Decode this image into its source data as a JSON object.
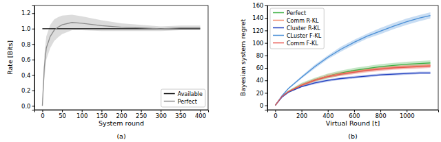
{
  "chart_data": [
    {
      "type": "line",
      "caption": "(a)",
      "x_label": "System round",
      "y_label": "Rate [Bits]",
      "x": [
        0,
        5,
        10,
        20,
        30,
        40,
        50,
        75,
        100,
        150,
        200,
        250,
        300,
        350,
        400
      ],
      "xlim": [
        -20,
        420
      ],
      "xticks": [
        0,
        50,
        100,
        150,
        200,
        250,
        300,
        350,
        400
      ],
      "ylim": [
        -0.05,
        1.3
      ],
      "yticks": [
        {
          "value": 0,
          "label": "0.0"
        },
        {
          "value": 0.2,
          "label": "0.2"
        },
        {
          "value": 0.4,
          "label": "0.4"
        },
        {
          "value": 0.6,
          "label": "0.6"
        },
        {
          "value": 0.8,
          "label": "0.8"
        },
        {
          "value": 1.0,
          "label": "1.0"
        },
        {
          "value": 1.2,
          "label": "1.2"
        }
      ],
      "legend": "lower right",
      "series": [
        {
          "name": "Available",
          "color": "#000000",
          "values": [
            1,
            1,
            1,
            1,
            1,
            1,
            1,
            1,
            1,
            1,
            1,
            1,
            1,
            1,
            1
          ]
        },
        {
          "name": "Perfect",
          "color": "#8c8c8c",
          "values": [
            0,
            0.5,
            0.75,
            0.9,
            0.98,
            1.02,
            1.05,
            1.08,
            1.07,
            1.04,
            1.02,
            1.01,
            1.0,
            1.01,
            1.01
          ],
          "error": [
            0,
            0.15,
            0.15,
            0.15,
            0.14,
            0.13,
            0.12,
            0.1,
            0.09,
            0.07,
            0.05,
            0.04,
            0.03,
            0.03,
            0.03
          ]
        }
      ]
    },
    {
      "type": "line",
      "caption": "(b)",
      "x_label": "Virtual Round [t]",
      "y_label": "Bayesian system regret",
      "x": [
        0,
        50,
        100,
        200,
        300,
        400,
        500,
        600,
        700,
        800,
        900,
        1000,
        1100,
        1180
      ],
      "xlim": [
        -60,
        1240
      ],
      "xticks": [
        0,
        200,
        400,
        600,
        800,
        1000
      ],
      "ylim": [
        -7,
        160
      ],
      "yticks": [
        0,
        20,
        40,
        60,
        80,
        100,
        120,
        140,
        160
      ],
      "legend": "upper left",
      "series": [
        {
          "name": "Perfect",
          "color": "#3cb043",
          "values": [
            0,
            14,
            22,
            33,
            41,
            47,
            52,
            56,
            59,
            62,
            64,
            66,
            67,
            68
          ],
          "error": [
            0,
            1,
            2,
            3,
            3,
            4,
            4,
            4,
            4,
            4,
            4,
            4,
            4,
            4
          ]
        },
        {
          "name": "Comm R-KL",
          "color": "#f08a6c",
          "values": [
            0,
            14,
            22,
            33,
            41,
            47,
            51,
            54,
            57,
            59,
            61,
            62,
            63,
            64
          ],
          "error": [
            0,
            1,
            1,
            2,
            2,
            3,
            3,
            3,
            3,
            3,
            3,
            3,
            3,
            3
          ]
        },
        {
          "name": "Cluster R-KL",
          "color": "#1f3fbf",
          "values": [
            0,
            13,
            21,
            30,
            36,
            40,
            43,
            45,
            47,
            49,
            50,
            51,
            52,
            52
          ],
          "error": [
            0,
            1,
            1,
            1,
            2,
            2,
            2,
            2,
            2,
            2,
            2,
            2,
            2,
            2
          ]
        },
        {
          "name": "CLuster F-KL",
          "color": "#4a8fd6",
          "values": [
            0,
            15,
            27,
            45,
            62,
            77,
            90,
            101,
            111,
            119,
            127,
            134,
            140,
            144
          ],
          "error": [
            0,
            1,
            1,
            2,
            3,
            3,
            4,
            4,
            4,
            5,
            5,
            5,
            5,
            5
          ]
        },
        {
          "name": "Comm F-KL",
          "color": "#e8544e",
          "values": [
            0,
            14,
            22,
            32,
            40,
            46,
            50,
            53,
            56,
            58,
            60,
            61,
            62,
            63
          ],
          "error": [
            0,
            1,
            1,
            2,
            2,
            2,
            3,
            3,
            3,
            3,
            3,
            3,
            3,
            3
          ]
        }
      ]
    }
  ]
}
